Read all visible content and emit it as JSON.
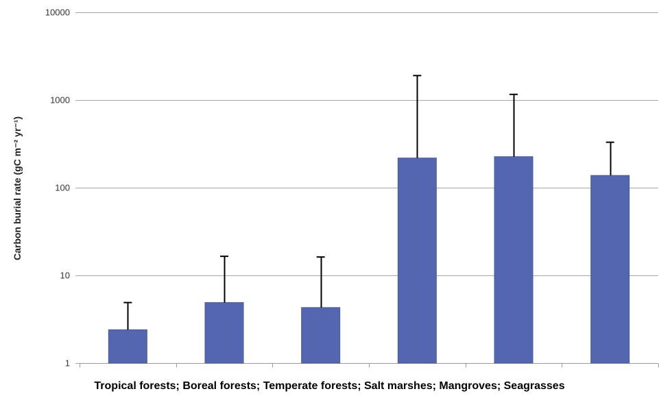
{
  "chart_data": {
    "type": "bar",
    "categories": [
      "Tropical forests",
      "Boreal forests",
      "Temperate forests",
      "Salt marshes",
      "Mangroves",
      "Seagrasses"
    ],
    "values": [
      2.4,
      4.9,
      4.3,
      218,
      226,
      138
    ],
    "error_upper": [
      4.9,
      16.5,
      16.2,
      1900,
      1160,
      330
    ],
    "ylabel": "Carbon burial rate (gC m⁻² yr⁻¹)",
    "xlabel": "Tropical forests; Boreal forests; Temperate forests; Salt marshes; Mangroves; Seagrasses",
    "yscale": "log",
    "ylim": [
      1,
      10000
    ],
    "yticks": [
      1,
      10,
      100,
      1000,
      10000
    ],
    "ytick_labels": [
      "1",
      "10",
      "100",
      "1000",
      "10000"
    ],
    "grid": "horizontal",
    "bar_color": "#5566b0",
    "legend": "none"
  }
}
